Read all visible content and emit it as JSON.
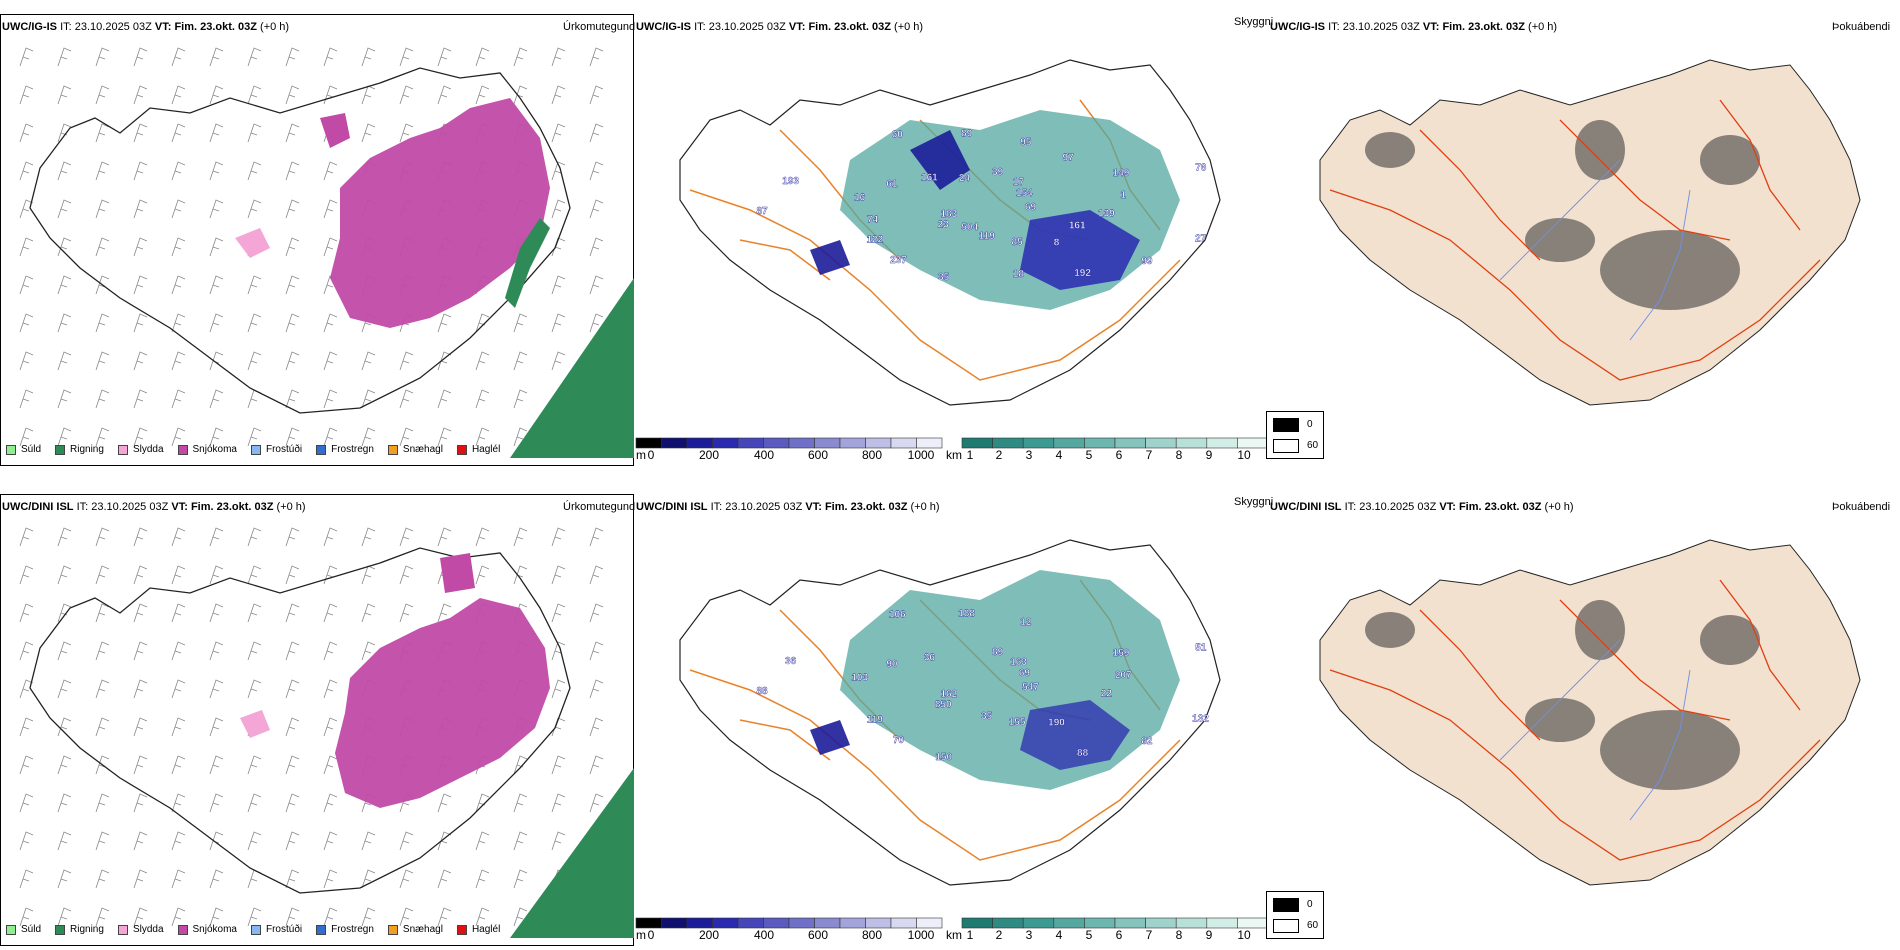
{
  "rows": [
    {
      "model": "UWC/IG-IS",
      "it_label": "IT:",
      "it_value": "23.10.2025 03Z",
      "vt_label": "VT:",
      "vt_value": "Fim. 23.okt. 03Z",
      "lead": "(+0 h)",
      "precip_title": "Úrkomutegund",
      "vis_title": "Skyggni",
      "cloud_title": "Þokuábendi",
      "vis_labels": [
        "69",
        "23",
        "39",
        "8",
        "16",
        "149",
        "35",
        "60",
        "27",
        "183",
        "17",
        "85",
        "61",
        "1",
        "237",
        "89",
        "99",
        "87",
        "154",
        "119",
        "161",
        "139",
        "122",
        "95",
        "192",
        "193",
        "76",
        "504",
        "24",
        "161",
        "74",
        "97",
        "18"
      ],
      "precip_layers": [
        "snow",
        "rain-sea"
      ]
    },
    {
      "model": "UWC/DINI ISL",
      "it_label": "IT:",
      "it_value": "23.10.2025 03Z",
      "vt_label": "VT:",
      "vt_value": "Fim. 23.okt. 03Z",
      "lead": "(+0 h)",
      "precip_title": "Úrkomutegund",
      "vis_title": "Skyggni",
      "cloud_title": "Þokuábendi",
      "vis_labels": [
        "547",
        "850",
        "89",
        "190",
        "103",
        "159",
        "150",
        "106",
        "132",
        "162",
        "163",
        "155",
        "90",
        "207",
        "70",
        "188",
        "82",
        "88",
        "69",
        "35",
        "36",
        "22",
        "119",
        "12",
        "88",
        "36",
        "51"
      ],
      "precip_layers": [
        "snow",
        "rain-sea"
      ]
    }
  ],
  "precip_legend": [
    {
      "label": "Súld",
      "color": "#90ee90"
    },
    {
      "label": "Rigning",
      "color": "#2e8b57"
    },
    {
      "label": "Slydda",
      "color": "#f4a7d7"
    },
    {
      "label": "Snjókoma",
      "color": "#c04aa6"
    },
    {
      "label": "Frostúði",
      "color": "#87b9f0"
    },
    {
      "label": "Frostregn",
      "color": "#2f6fd0"
    },
    {
      "label": "Snæhagl",
      "color": "#f0a020"
    },
    {
      "label": "Haglél",
      "color": "#e01010"
    }
  ],
  "height_scale": {
    "unit": "m",
    "ticks": [
      "0",
      "200",
      "400",
      "600",
      "800",
      "1000"
    ],
    "colors": [
      "#000000",
      "#10106e",
      "#1c1c98",
      "#2a2ab0",
      "#4646b8",
      "#5a5ac0",
      "#7070c8",
      "#8a8ad0",
      "#a4a4dc",
      "#bebee6",
      "#d8d8f0",
      "#eeeefa"
    ]
  },
  "visibility_scale": {
    "unit": "km",
    "ticks": [
      "1",
      "2",
      "3",
      "4",
      "5",
      "6",
      "7",
      "8",
      "9",
      "10"
    ],
    "colors": [
      "#1f7a72",
      "#2e8a82",
      "#3d9a92",
      "#54a8a0",
      "#6bb6ae",
      "#84c4bc",
      "#9ed2ca",
      "#b8e0d8",
      "#d2ede6",
      "#ecf8f4"
    ]
  },
  "cloud_legend": [
    {
      "label": "0",
      "color": "#000000"
    },
    {
      "label": "60",
      "color": "#ffffff"
    }
  ]
}
